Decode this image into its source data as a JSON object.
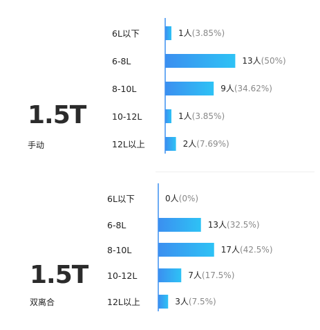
{
  "chart_data": [
    {
      "type": "bar",
      "orientation": "horizontal",
      "title": "1.5T",
      "subtitle": "手动",
      "categories": [
        "6L以下",
        "6-8L",
        "8-10L",
        "10-12L",
        "12L以上"
      ],
      "values": [
        1,
        13,
        9,
        1,
        2
      ],
      "count_labels": [
        "1人",
        "13人",
        "9人",
        "1人",
        "2人"
      ],
      "percent_labels": [
        "(3.85%)",
        "(50%)",
        "(34.62%)",
        "(3.85%)",
        "(7.69%)"
      ],
      "grid": false
    },
    {
      "type": "bar",
      "orientation": "horizontal",
      "title": "1.5T",
      "subtitle": "双离合",
      "categories": [
        "6L以下",
        "6-8L",
        "8-10L",
        "10-12L",
        "12L以上"
      ],
      "values": [
        0,
        13,
        17,
        7,
        3
      ],
      "count_labels": [
        "0人",
        "13人",
        "17人",
        "7人",
        "3人"
      ],
      "percent_labels": [
        "(0%)",
        "(32.5%)",
        "(42.5%)",
        "(17.5%)",
        "(7.5%)"
      ],
      "grid": false
    }
  ],
  "colors": {
    "bar_start": "#3b8ff0",
    "bar_end": "#2ec2f5",
    "axis": "#3b8ff0"
  }
}
